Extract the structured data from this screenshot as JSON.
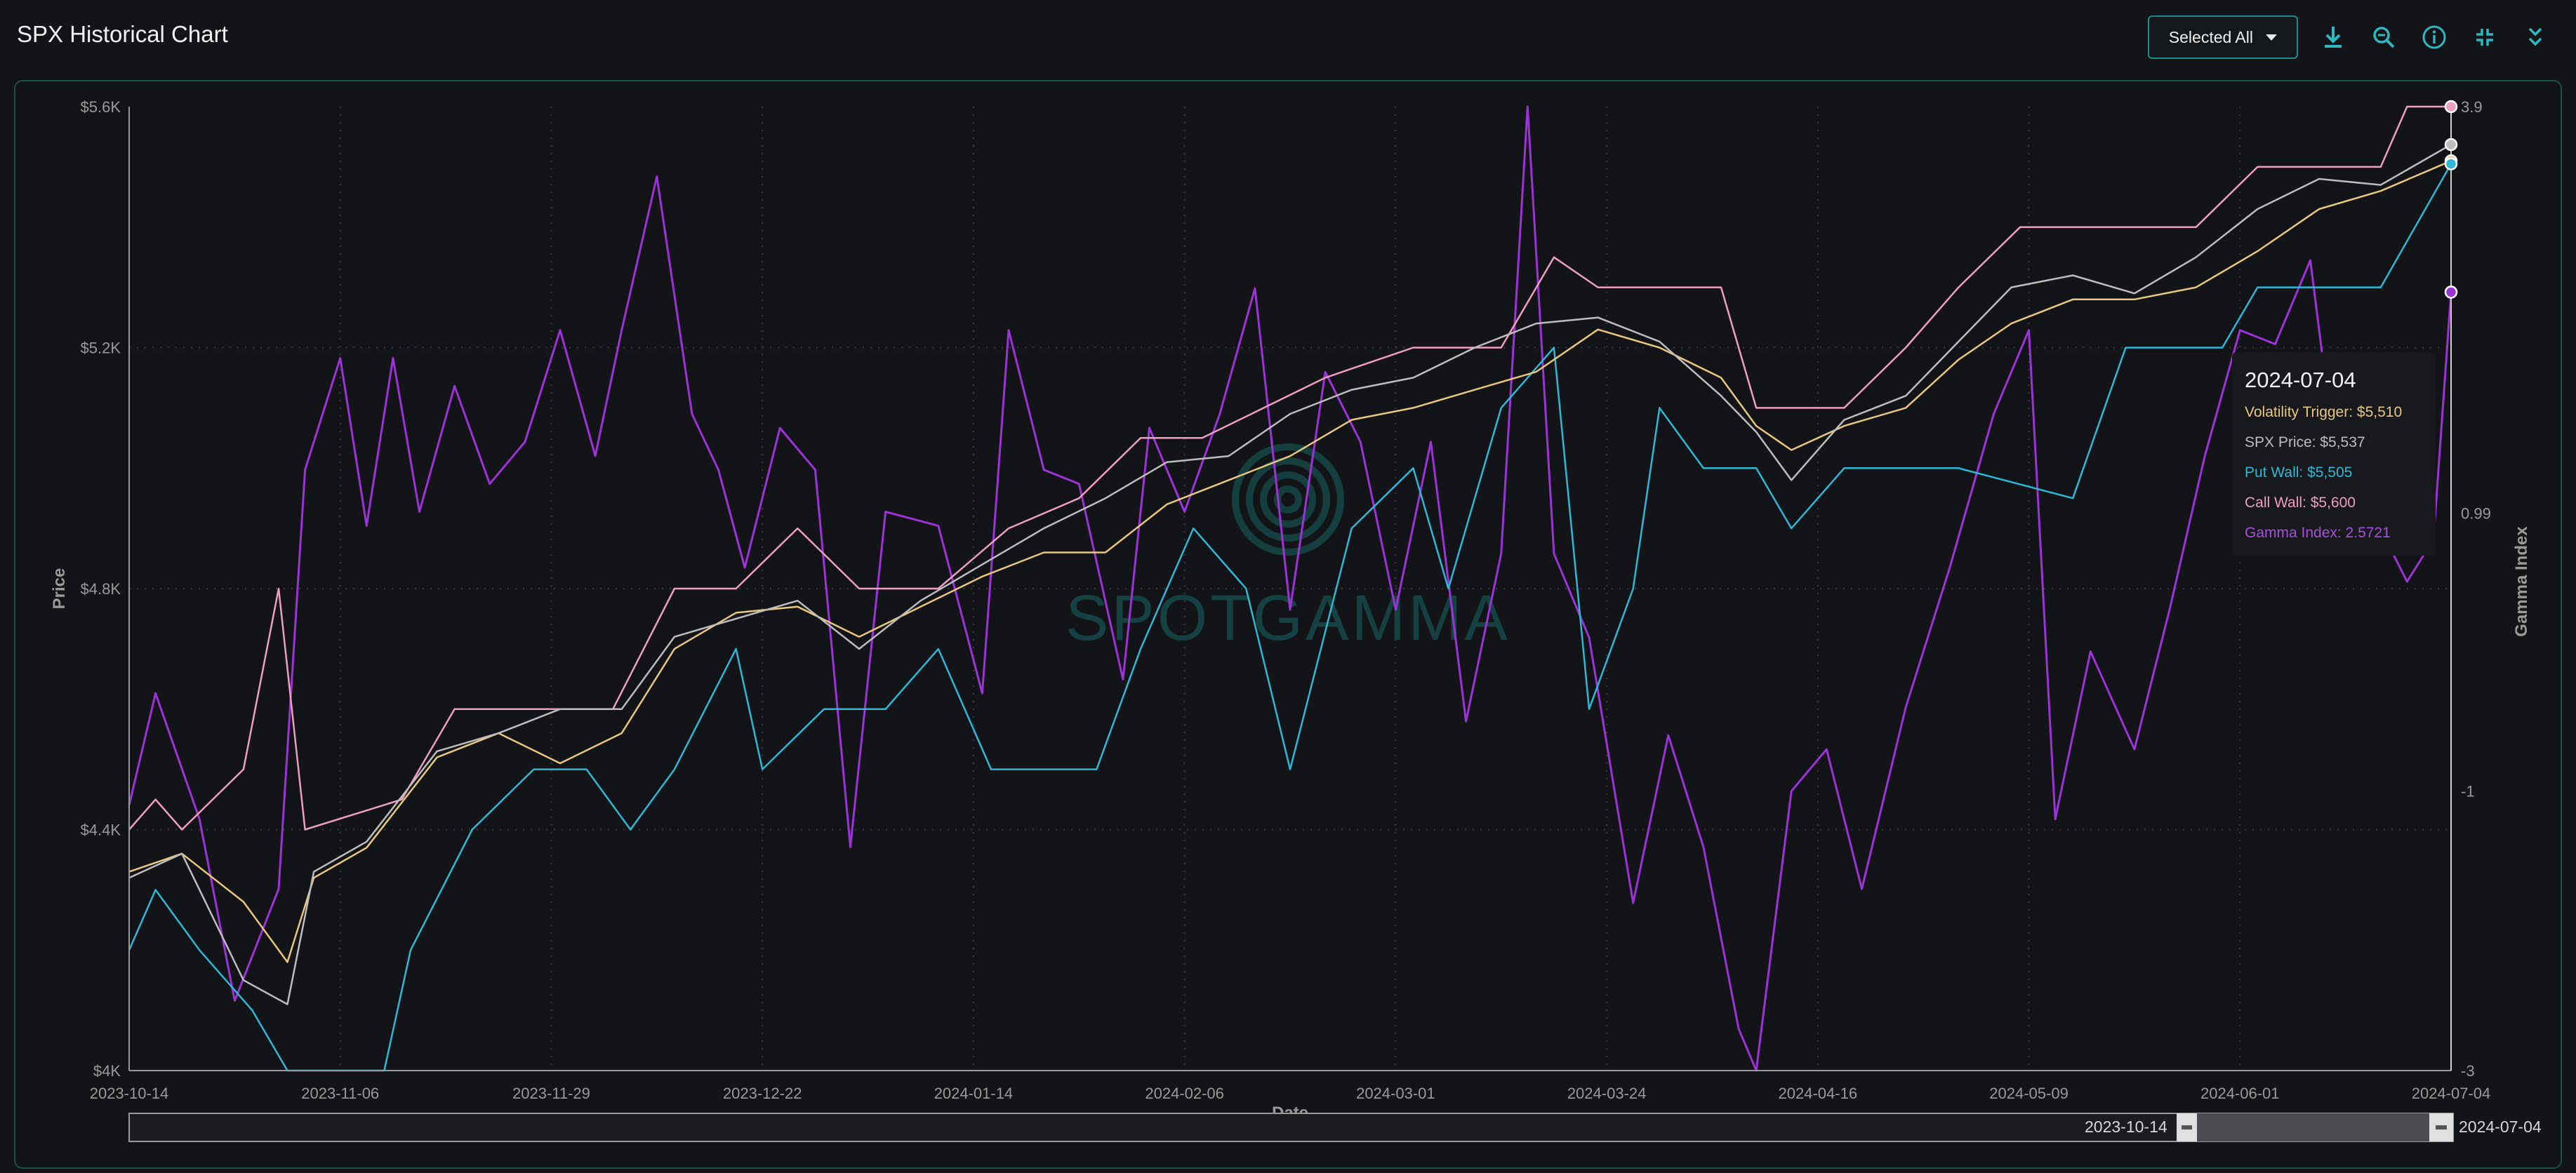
{
  "header": {
    "title": "SPX Historical Chart",
    "select_label": "Selected All",
    "icons": [
      "download-icon",
      "zoom-icon",
      "info-icon",
      "collapse-icon",
      "chevrons-down-icon"
    ]
  },
  "colors": {
    "background": "#131417",
    "accent": "#1f8a8a",
    "volatility_trigger": "#e8c77f",
    "spx_price": "#bdbdbd",
    "put_wall": "#2fb8d6",
    "call_wall": "#ee9ec0",
    "gamma_index": "#9b33d6"
  },
  "chart_data": {
    "type": "line",
    "xlabel": "Date",
    "ylabel": "Price",
    "y2label": "Gamma Index",
    "watermark": "SPOTGAMMA",
    "x_range": [
      "2023-10-14",
      "2024-07-04"
    ],
    "ylim": [
      4000,
      5600
    ],
    "y2lim": [
      -3,
      3.9
    ],
    "y_ticks": [
      "$5.6K",
      "$5.2K",
      "$4.8K",
      "$4.4K",
      "$4K"
    ],
    "y2_ticks": [
      "3.9",
      "0.99",
      "-1",
      "-3"
    ],
    "x_ticks": [
      "2023-10-14",
      "2023-11-06",
      "2023-11-29",
      "2023-12-22",
      "2024-01-14",
      "2024-02-06",
      "2024-03-01",
      "2024-03-24",
      "2024-04-16",
      "2024-05-09",
      "2024-06-01",
      "2024-07-04"
    ],
    "grid": true,
    "series": [
      {
        "name": "Volatility Trigger",
        "axis": "left",
        "points": [
          [
            "2023-10-14",
            4330
          ],
          [
            "2023-10-20",
            4360
          ],
          [
            "2023-10-27",
            4280
          ],
          [
            "2023-11-01",
            4180
          ],
          [
            "2023-11-04",
            4320
          ],
          [
            "2023-11-10",
            4370
          ],
          [
            "2023-11-18",
            4520
          ],
          [
            "2023-11-25",
            4560
          ],
          [
            "2023-12-02",
            4510
          ],
          [
            "2023-12-09",
            4560
          ],
          [
            "2023-12-15",
            4700
          ],
          [
            "2023-12-22",
            4760
          ],
          [
            "2023-12-29",
            4770
          ],
          [
            "2024-01-05",
            4720
          ],
          [
            "2024-01-12",
            4770
          ],
          [
            "2024-01-19",
            4820
          ],
          [
            "2024-01-26",
            4860
          ],
          [
            "2024-02-02",
            4860
          ],
          [
            "2024-02-09",
            4940
          ],
          [
            "2024-02-16",
            4980
          ],
          [
            "2024-02-23",
            5020
          ],
          [
            "2024-03-01",
            5080
          ],
          [
            "2024-03-08",
            5100
          ],
          [
            "2024-03-15",
            5130
          ],
          [
            "2024-03-22",
            5160
          ],
          [
            "2024-03-29",
            5230
          ],
          [
            "2024-04-05",
            5200
          ],
          [
            "2024-04-12",
            5150
          ],
          [
            "2024-04-16",
            5070
          ],
          [
            "2024-04-20",
            5030
          ],
          [
            "2024-04-26",
            5070
          ],
          [
            "2024-05-03",
            5100
          ],
          [
            "2024-05-09",
            5180
          ],
          [
            "2024-05-15",
            5240
          ],
          [
            "2024-05-22",
            5280
          ],
          [
            "2024-05-29",
            5280
          ],
          [
            "2024-06-05",
            5300
          ],
          [
            "2024-06-12",
            5360
          ],
          [
            "2024-06-19",
            5430
          ],
          [
            "2024-06-26",
            5460
          ],
          [
            "2024-07-04",
            5510
          ]
        ]
      },
      {
        "name": "SPX Price",
        "axis": "left",
        "points": [
          [
            "2023-10-14",
            4320
          ],
          [
            "2023-10-20",
            4360
          ],
          [
            "2023-10-27",
            4150
          ],
          [
            "2023-11-01",
            4110
          ],
          [
            "2023-11-04",
            4330
          ],
          [
            "2023-11-10",
            4380
          ],
          [
            "2023-11-18",
            4530
          ],
          [
            "2023-11-25",
            4560
          ],
          [
            "2023-12-02",
            4600
          ],
          [
            "2023-12-09",
            4600
          ],
          [
            "2023-12-15",
            4720
          ],
          [
            "2023-12-22",
            4750
          ],
          [
            "2023-12-29",
            4780
          ],
          [
            "2024-01-05",
            4700
          ],
          [
            "2024-01-12",
            4780
          ],
          [
            "2024-01-19",
            4840
          ],
          [
            "2024-01-26",
            4900
          ],
          [
            "2024-02-02",
            4950
          ],
          [
            "2024-02-09",
            5010
          ],
          [
            "2024-02-16",
            5020
          ],
          [
            "2024-02-23",
            5090
          ],
          [
            "2024-03-01",
            5130
          ],
          [
            "2024-03-08",
            5150
          ],
          [
            "2024-03-15",
            5200
          ],
          [
            "2024-03-22",
            5240
          ],
          [
            "2024-03-29",
            5250
          ],
          [
            "2024-04-05",
            5210
          ],
          [
            "2024-04-12",
            5120
          ],
          [
            "2024-04-16",
            5060
          ],
          [
            "2024-04-20",
            4980
          ],
          [
            "2024-04-26",
            5080
          ],
          [
            "2024-05-03",
            5120
          ],
          [
            "2024-05-09",
            5210
          ],
          [
            "2024-05-15",
            5300
          ],
          [
            "2024-05-22",
            5320
          ],
          [
            "2024-05-29",
            5290
          ],
          [
            "2024-06-05",
            5350
          ],
          [
            "2024-06-12",
            5430
          ],
          [
            "2024-06-19",
            5480
          ],
          [
            "2024-06-26",
            5470
          ],
          [
            "2024-07-04",
            5537
          ]
        ]
      },
      {
        "name": "Put Wall",
        "axis": "left",
        "points": [
          [
            "2023-10-14",
            4200
          ],
          [
            "2023-10-17",
            4300
          ],
          [
            "2023-10-22",
            4200
          ],
          [
            "2023-10-28",
            4100
          ],
          [
            "2023-11-01",
            4000
          ],
          [
            "2023-11-12",
            4000
          ],
          [
            "2023-11-15",
            4200
          ],
          [
            "2023-11-22",
            4400
          ],
          [
            "2023-11-29",
            4500
          ],
          [
            "2023-12-05",
            4500
          ],
          [
            "2023-12-10",
            4400
          ],
          [
            "2023-12-15",
            4500
          ],
          [
            "2023-12-22",
            4700
          ],
          [
            "2023-12-25",
            4500
          ],
          [
            "2024-01-01",
            4600
          ],
          [
            "2024-01-08",
            4600
          ],
          [
            "2024-01-14",
            4700
          ],
          [
            "2024-01-20",
            4500
          ],
          [
            "2024-02-01",
            4500
          ],
          [
            "2024-02-06",
            4700
          ],
          [
            "2024-02-12",
            4900
          ],
          [
            "2024-02-18",
            4800
          ],
          [
            "2024-02-23",
            4500
          ],
          [
            "2024-03-01",
            4900
          ],
          [
            "2024-03-08",
            5000
          ],
          [
            "2024-03-12",
            4800
          ],
          [
            "2024-03-18",
            5100
          ],
          [
            "2024-03-24",
            5200
          ],
          [
            "2024-03-28",
            4600
          ],
          [
            "2024-04-02",
            4800
          ],
          [
            "2024-04-05",
            5100
          ],
          [
            "2024-04-10",
            5000
          ],
          [
            "2024-04-16",
            5000
          ],
          [
            "2024-04-20",
            4900
          ],
          [
            "2024-04-26",
            5000
          ],
          [
            "2024-05-09",
            5000
          ],
          [
            "2024-05-22",
            4950
          ],
          [
            "2024-05-28",
            5200
          ],
          [
            "2024-06-01",
            5200
          ],
          [
            "2024-06-08",
            5200
          ],
          [
            "2024-06-12",
            5300
          ],
          [
            "2024-06-26",
            5300
          ],
          [
            "2024-07-04",
            5505
          ]
        ]
      },
      {
        "name": "Call Wall",
        "axis": "left",
        "points": [
          [
            "2023-10-14",
            4400
          ],
          [
            "2023-10-17",
            4450
          ],
          [
            "2023-10-20",
            4400
          ],
          [
            "2023-10-27",
            4500
          ],
          [
            "2023-10-31",
            4800
          ],
          [
            "2023-11-03",
            4400
          ],
          [
            "2023-11-14",
            4450
          ],
          [
            "2023-11-20",
            4600
          ],
          [
            "2023-11-29",
            4600
          ],
          [
            "2023-12-08",
            4600
          ],
          [
            "2023-12-15",
            4800
          ],
          [
            "2023-12-22",
            4800
          ],
          [
            "2023-12-29",
            4900
          ],
          [
            "2024-01-05",
            4800
          ],
          [
            "2024-01-14",
            4800
          ],
          [
            "2024-01-22",
            4900
          ],
          [
            "2024-01-30",
            4950
          ],
          [
            "2024-02-06",
            5050
          ],
          [
            "2024-02-13",
            5050
          ],
          [
            "2024-02-20",
            5100
          ],
          [
            "2024-02-27",
            5150
          ],
          [
            "2024-03-08",
            5200
          ],
          [
            "2024-03-18",
            5200
          ],
          [
            "2024-03-24",
            5350
          ],
          [
            "2024-03-29",
            5300
          ],
          [
            "2024-04-12",
            5300
          ],
          [
            "2024-04-16",
            5100
          ],
          [
            "2024-04-26",
            5100
          ],
          [
            "2024-05-03",
            5200
          ],
          [
            "2024-05-09",
            5300
          ],
          [
            "2024-05-16",
            5400
          ],
          [
            "2024-05-29",
            5400
          ],
          [
            "2024-06-05",
            5400
          ],
          [
            "2024-06-12",
            5500
          ],
          [
            "2024-06-26",
            5500
          ],
          [
            "2024-06-29",
            5600
          ],
          [
            "2024-07-04",
            5600
          ]
        ]
      },
      {
        "name": "Gamma Index",
        "axis": "right",
        "points": [
          [
            "2023-10-14",
            -1.1
          ],
          [
            "2023-10-17",
            -0.3
          ],
          [
            "2023-10-22",
            -1.2
          ],
          [
            "2023-10-26",
            -2.5
          ],
          [
            "2023-10-31",
            -1.7
          ],
          [
            "2023-11-03",
            1.3
          ],
          [
            "2023-11-07",
            2.1
          ],
          [
            "2023-11-10",
            0.9
          ],
          [
            "2023-11-13",
            2.1
          ],
          [
            "2023-11-16",
            1.0
          ],
          [
            "2023-11-20",
            1.9
          ],
          [
            "2023-11-24",
            1.2
          ],
          [
            "2023-11-28",
            1.5
          ],
          [
            "2023-12-02",
            2.3
          ],
          [
            "2023-12-06",
            1.4
          ],
          [
            "2023-12-09",
            2.3
          ],
          [
            "2023-12-13",
            3.4
          ],
          [
            "2023-12-17",
            1.7
          ],
          [
            "2023-12-20",
            1.3
          ],
          [
            "2023-12-23",
            0.6
          ],
          [
            "2023-12-27",
            1.6
          ],
          [
            "2023-12-31",
            1.3
          ],
          [
            "2024-01-04",
            -1.4
          ],
          [
            "2024-01-08",
            1.0
          ],
          [
            "2024-01-14",
            0.9
          ],
          [
            "2024-01-19",
            -0.3
          ],
          [
            "2024-01-22",
            2.3
          ],
          [
            "2024-01-26",
            1.3
          ],
          [
            "2024-01-30",
            1.2
          ],
          [
            "2024-02-04",
            -0.2
          ],
          [
            "2024-02-07",
            1.6
          ],
          [
            "2024-02-11",
            1.0
          ],
          [
            "2024-02-15",
            1.7
          ],
          [
            "2024-02-19",
            2.6
          ],
          [
            "2024-02-23",
            0.3
          ],
          [
            "2024-02-27",
            2.0
          ],
          [
            "2024-03-02",
            1.5
          ],
          [
            "2024-03-06",
            0.3
          ],
          [
            "2024-03-10",
            1.5
          ],
          [
            "2024-03-14",
            -0.5
          ],
          [
            "2024-03-18",
            0.7
          ],
          [
            "2024-03-21",
            3.9
          ],
          [
            "2024-03-24",
            0.7
          ],
          [
            "2024-03-28",
            0.1
          ],
          [
            "2024-04-02",
            -1.8
          ],
          [
            "2024-04-06",
            -0.6
          ],
          [
            "2024-04-10",
            -1.4
          ],
          [
            "2024-04-14",
            -2.7
          ],
          [
            "2024-04-16",
            -3.0
          ],
          [
            "2024-04-20",
            -1.0
          ],
          [
            "2024-04-24",
            -0.7
          ],
          [
            "2024-04-28",
            -1.7
          ],
          [
            "2024-05-03",
            -0.4
          ],
          [
            "2024-05-08",
            0.6
          ],
          [
            "2024-05-13",
            1.7
          ],
          [
            "2024-05-17",
            2.3
          ],
          [
            "2024-05-20",
            -1.2
          ],
          [
            "2024-05-24",
            0.0
          ],
          [
            "2024-05-29",
            -0.7
          ],
          [
            "2024-06-02",
            0.3
          ],
          [
            "2024-06-06",
            1.4
          ],
          [
            "2024-06-10",
            2.3
          ],
          [
            "2024-06-14",
            2.2
          ],
          [
            "2024-06-18",
            2.8
          ],
          [
            "2024-06-21",
            1.3
          ],
          [
            "2024-06-25",
            1.0
          ],
          [
            "2024-06-29",
            0.5
          ],
          [
            "2024-07-02",
            0.8
          ],
          [
            "2024-07-04",
            2.5721
          ]
        ]
      }
    ]
  },
  "tooltip": {
    "date": "2024-07-04",
    "volatility_trigger": "Volatility Trigger: $5,510",
    "spx_price": "SPX Price: $5,537",
    "put_wall": "Put Wall: $5,505",
    "call_wall": "Call Wall: $5,600",
    "gamma_index": "Gamma Index: 2.5721"
  },
  "range_slider": {
    "start": "2023-10-14",
    "end": "2024-07-04"
  }
}
